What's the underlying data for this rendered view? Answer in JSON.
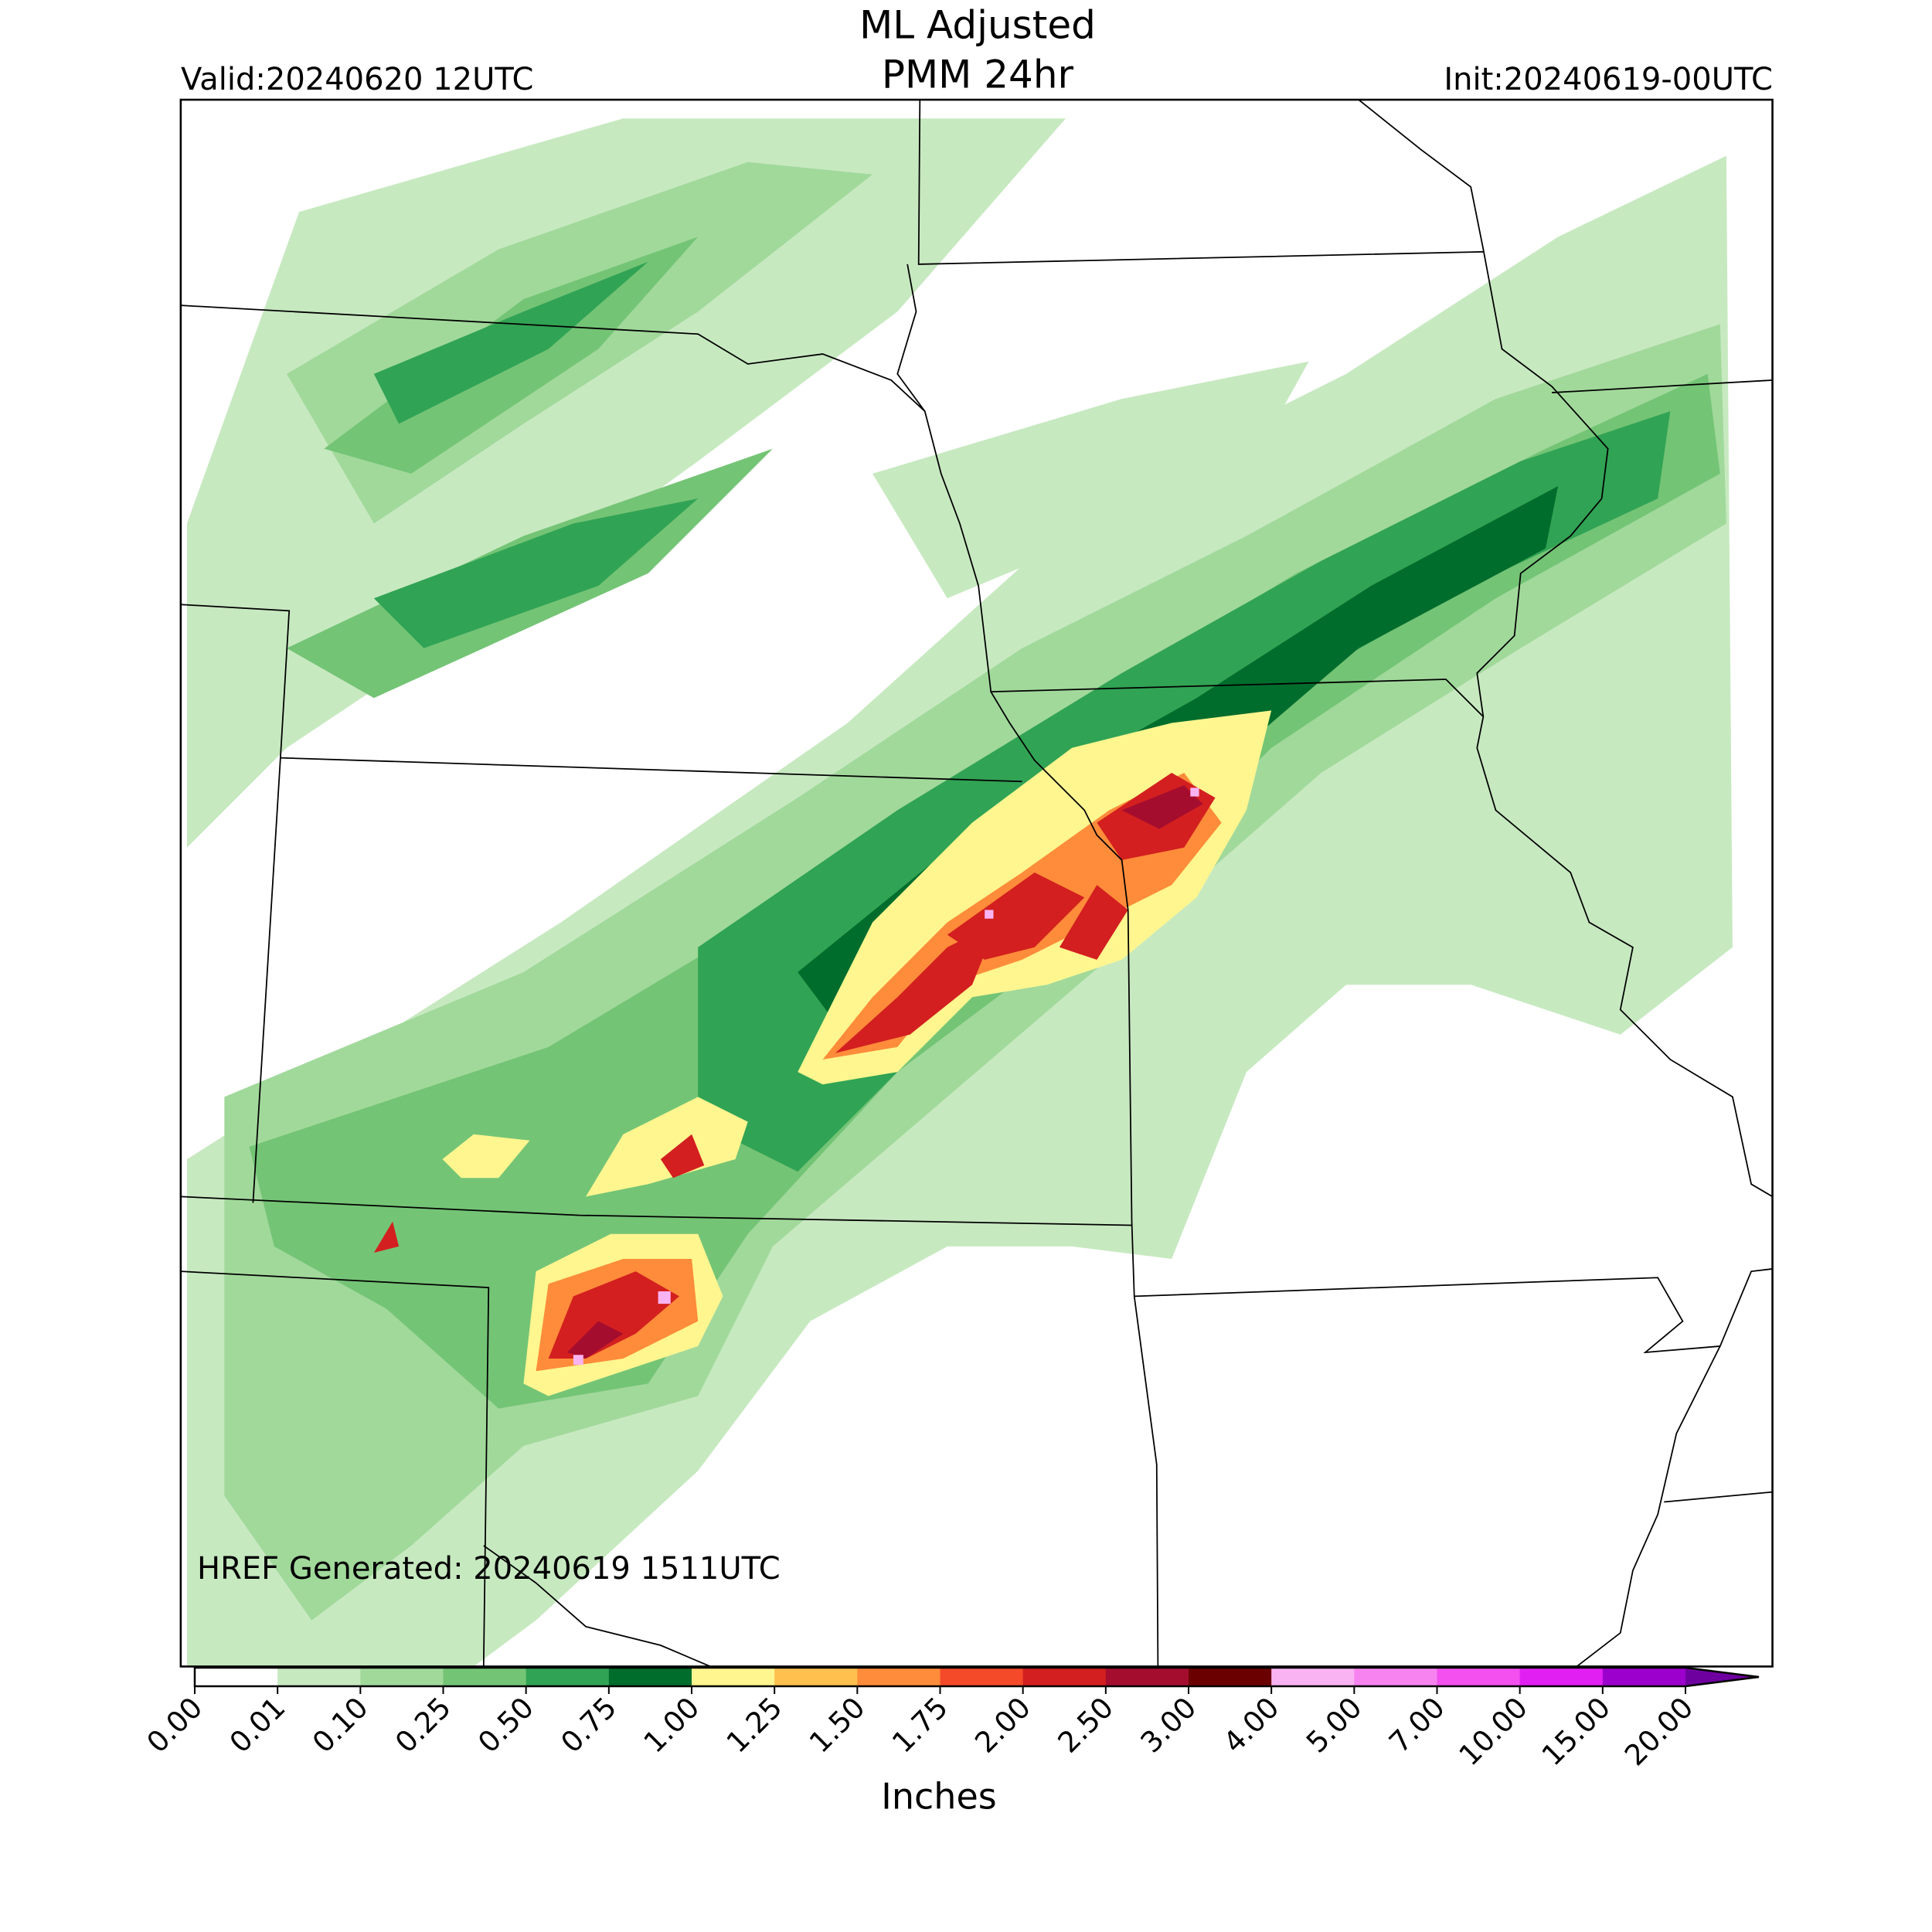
{
  "header": {
    "title_lines": [
      "ML Adjusted",
      "PMM 24hr"
    ],
    "valid": "Valid:20240620 12UTC",
    "init": "Init:20240619-00UTC"
  },
  "map": {
    "annotation": "HREF Generated: 20240619 1511UTC"
  },
  "colorbar": {
    "ticks": [
      {
        "value": 0,
        "label": "0.00"
      },
      {
        "value": 0.01,
        "label": "0.01"
      },
      {
        "value": 0.1,
        "label": "0.10"
      },
      {
        "value": 0.25,
        "label": "0.25"
      },
      {
        "value": 0.5,
        "label": "0.50"
      },
      {
        "value": 0.75,
        "label": "0.75"
      },
      {
        "value": 1,
        "label": "1.00"
      },
      {
        "value": 1.25,
        "label": "1.25"
      },
      {
        "value": 1.5,
        "label": "1.50"
      },
      {
        "value": 1.75,
        "label": "1.75"
      },
      {
        "value": 2,
        "label": "2.00"
      },
      {
        "value": 2.5,
        "label": "2.50"
      },
      {
        "value": 3,
        "label": "3.00"
      },
      {
        "value": 4,
        "label": "4.00"
      },
      {
        "value": 5,
        "label": "5.00"
      },
      {
        "value": 7,
        "label": "7.00"
      },
      {
        "value": 10,
        "label": "10.00"
      },
      {
        "value": 15,
        "label": "15.00"
      },
      {
        "value": 20,
        "label": "20.00"
      }
    ],
    "colors": [
      "#ffffff",
      "#c7e9c0",
      "#a1d99b",
      "#74c476",
      "#31a354",
      "#006d2c",
      "#fff68f",
      "#ffc04d",
      "#ff8c3a",
      "#f44a2a",
      "#d31f1f",
      "#a50d2f",
      "#6a0000",
      "#f9b3f2",
      "#f783f0",
      "#f350ef",
      "#e11ff2",
      "#9b00cc"
    ],
    "extend_color": "#6f00a0",
    "label": "Inches"
  }
}
